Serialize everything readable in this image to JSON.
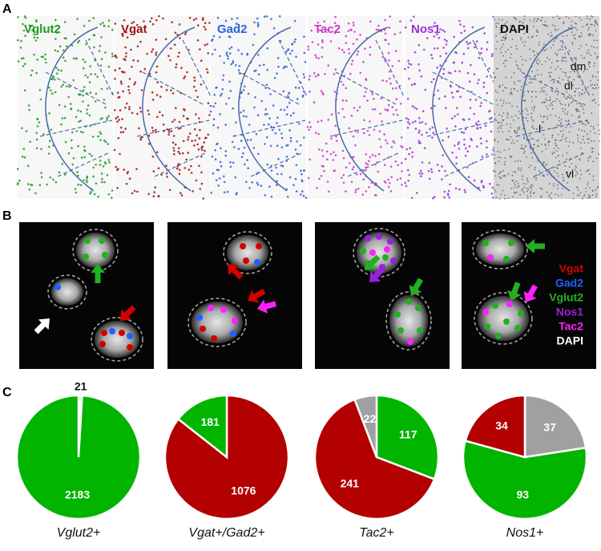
{
  "panel_labels": [
    "A",
    "B",
    "C"
  ],
  "panel_a": {
    "channels": [
      {
        "label": "Vglut2",
        "color": "#1e9a1e"
      },
      {
        "label": "Vgat",
        "color": "#a01010"
      },
      {
        "label": "Gad2",
        "color": "#2a62d6"
      },
      {
        "label": "Tac2",
        "color": "#cc33cc"
      },
      {
        "label": "Nos1",
        "color": "#9b30d9"
      },
      {
        "label": "DAPI",
        "color": "#111111"
      }
    ],
    "regions": [
      "dm",
      "dl",
      "l",
      "vl"
    ]
  },
  "panel_b": {
    "legend": [
      {
        "label": "Vgat",
        "color": "#d40000"
      },
      {
        "label": "Gad2",
        "color": "#2060ff"
      },
      {
        "label": "Vglut2",
        "color": "#22b022"
      },
      {
        "label": "Nos1",
        "color": "#9a20e0"
      },
      {
        "label": "Tac2",
        "color": "#ff20ff"
      },
      {
        "label": "DAPI",
        "color": "#ffffff"
      }
    ]
  },
  "chart_data": [
    {
      "type": "pie",
      "title": "Vglut2+",
      "values": [
        21,
        2183
      ],
      "colors": [
        "#ffffff",
        "#00b400"
      ]
    },
    {
      "type": "pie",
      "title": "Vgat+/Gad2+",
      "values": [
        1076,
        181
      ],
      "colors": [
        "#b30000",
        "#00b400"
      ]
    },
    {
      "type": "pie",
      "title": "Tac2+",
      "values": [
        117,
        241,
        22
      ],
      "colors": [
        "#00b400",
        "#b30000",
        "#a0a0a0"
      ]
    },
    {
      "type": "pie",
      "title": "Nos1+",
      "values": [
        37,
        93,
        34
      ],
      "colors": [
        "#a0a0a0",
        "#00b400",
        "#b30000"
      ]
    }
  ]
}
